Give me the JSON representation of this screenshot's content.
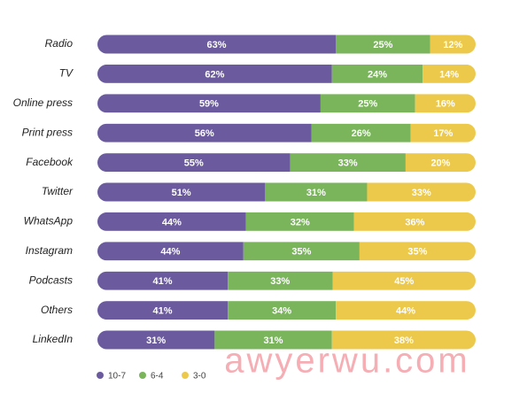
{
  "chart_data": {
    "type": "bar",
    "orientation": "horizontal",
    "stacked": true,
    "normalized": true,
    "categories": [
      "Radio",
      "TV",
      "Online press",
      "Print press",
      "Facebook",
      "Twitter",
      "WhatsApp",
      "Instagram",
      "Podcasts",
      "Others",
      "LinkedIn"
    ],
    "series": [
      {
        "name": "10-7",
        "color": "#6b5b9e",
        "values": [
          63,
          62,
          59,
          56,
          55,
          51,
          44,
          44,
          41,
          41,
          31
        ],
        "value_labels": [
          "63%",
          "62%",
          "59%",
          "56%",
          "55%",
          "51%",
          "44%",
          "44%",
          "41%",
          "41%",
          "31%"
        ]
      },
      {
        "name": "6-4",
        "color": "#7ab55c",
        "values": [
          25,
          24,
          25,
          26,
          33,
          31,
          32,
          35,
          33,
          34,
          31
        ],
        "value_labels": [
          "25%",
          "24%",
          "25%",
          "26%",
          "33%",
          "31%",
          "32%",
          "35%",
          "33%",
          "34%",
          "31%"
        ]
      },
      {
        "name": "3-0",
        "color": "#ecc94b",
        "values": [
          12,
          14,
          16,
          17,
          20,
          33,
          36,
          35,
          45,
          44,
          38
        ],
        "value_labels": [
          "12%",
          "14%",
          "16%",
          "17%",
          "20%",
          "33%",
          "36%",
          "35%",
          "45%",
          "44%",
          "38%"
        ]
      }
    ],
    "legend": "bottom-left",
    "watermark": "awyerwu.com"
  }
}
